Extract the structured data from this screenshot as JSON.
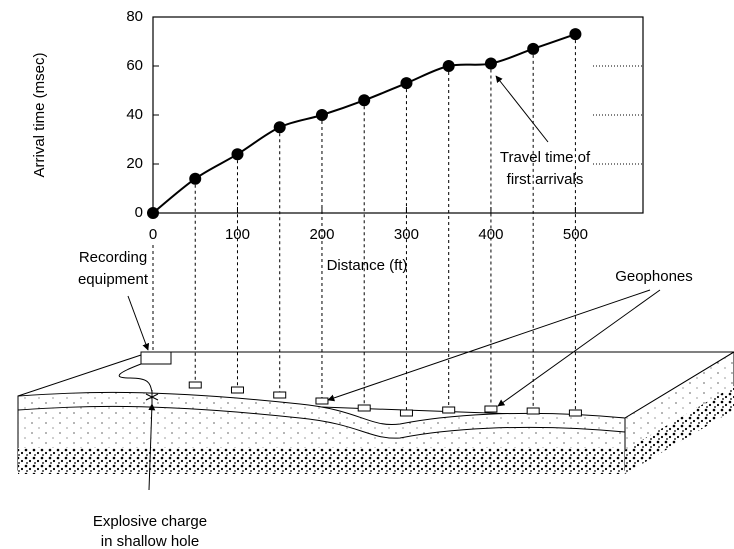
{
  "chart_data": {
    "type": "line",
    "x": [
      0,
      50,
      100,
      150,
      200,
      250,
      300,
      350,
      400,
      450,
      500
    ],
    "values": [
      0,
      14,
      24,
      35,
      40,
      46,
      53,
      60,
      61,
      67,
      73
    ],
    "color": "#000000",
    "xlabel": "Distance (ft)",
    "ylabel": "Arrival time (msec)",
    "xlim": [
      0,
      580
    ],
    "ylim": [
      0,
      80
    ],
    "xticks": [
      0,
      100,
      200,
      300,
      400,
      500
    ],
    "yticks": [
      0,
      20,
      40,
      60,
      80
    ],
    "annotation": [
      "Travel time of",
      "first arrivals"
    ]
  },
  "labels": {
    "recording": [
      "Recording",
      "equipment"
    ],
    "geophones": "Geophones",
    "charge": [
      "Explosive charge",
      "in shallow hole"
    ]
  }
}
